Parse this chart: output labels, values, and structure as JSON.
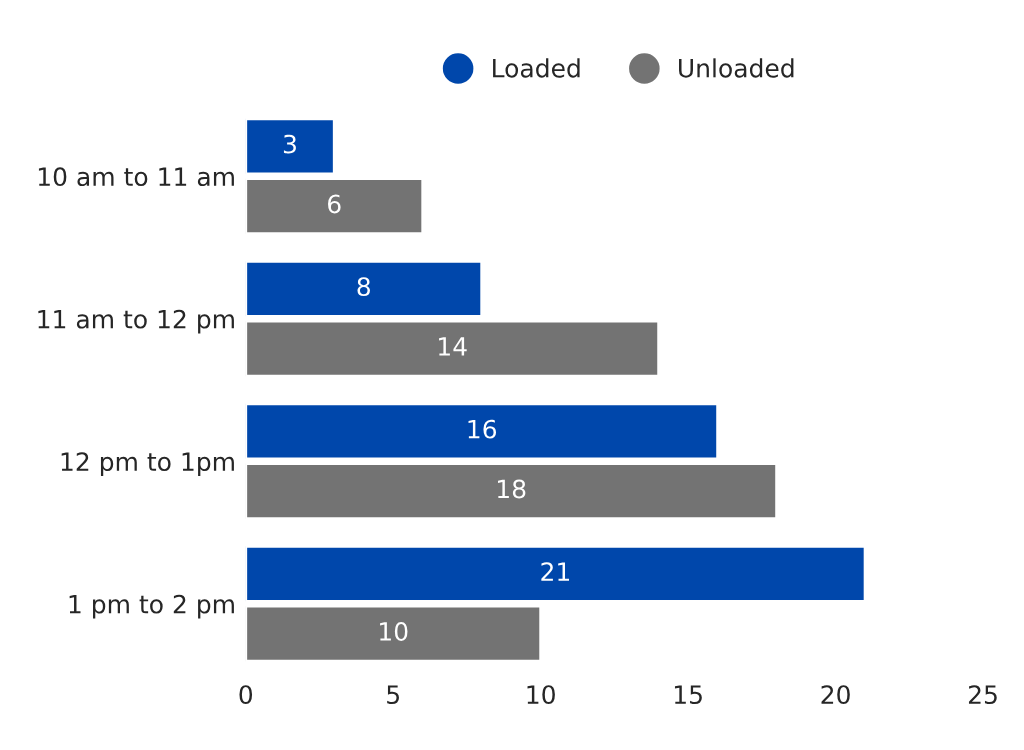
{
  "chart_data": {
    "type": "bar",
    "orientation": "horizontal",
    "categories": [
      "10 am to 11 am",
      "11 am to 12 pm",
      "12 pm to 1pm",
      "1 pm to 2 pm"
    ],
    "series": [
      {
        "name": "Loaded",
        "color": "#0047ab",
        "values": [
          3,
          8,
          16,
          21
        ]
      },
      {
        "name": "Unloaded",
        "color": "#737373",
        "values": [
          6,
          14,
          18,
          10
        ]
      }
    ],
    "xlim": [
      0,
      25
    ],
    "xticks": [
      0,
      5,
      10,
      15,
      20,
      25
    ],
    "grid": false,
    "legend": "top",
    "data_labels": true
  }
}
